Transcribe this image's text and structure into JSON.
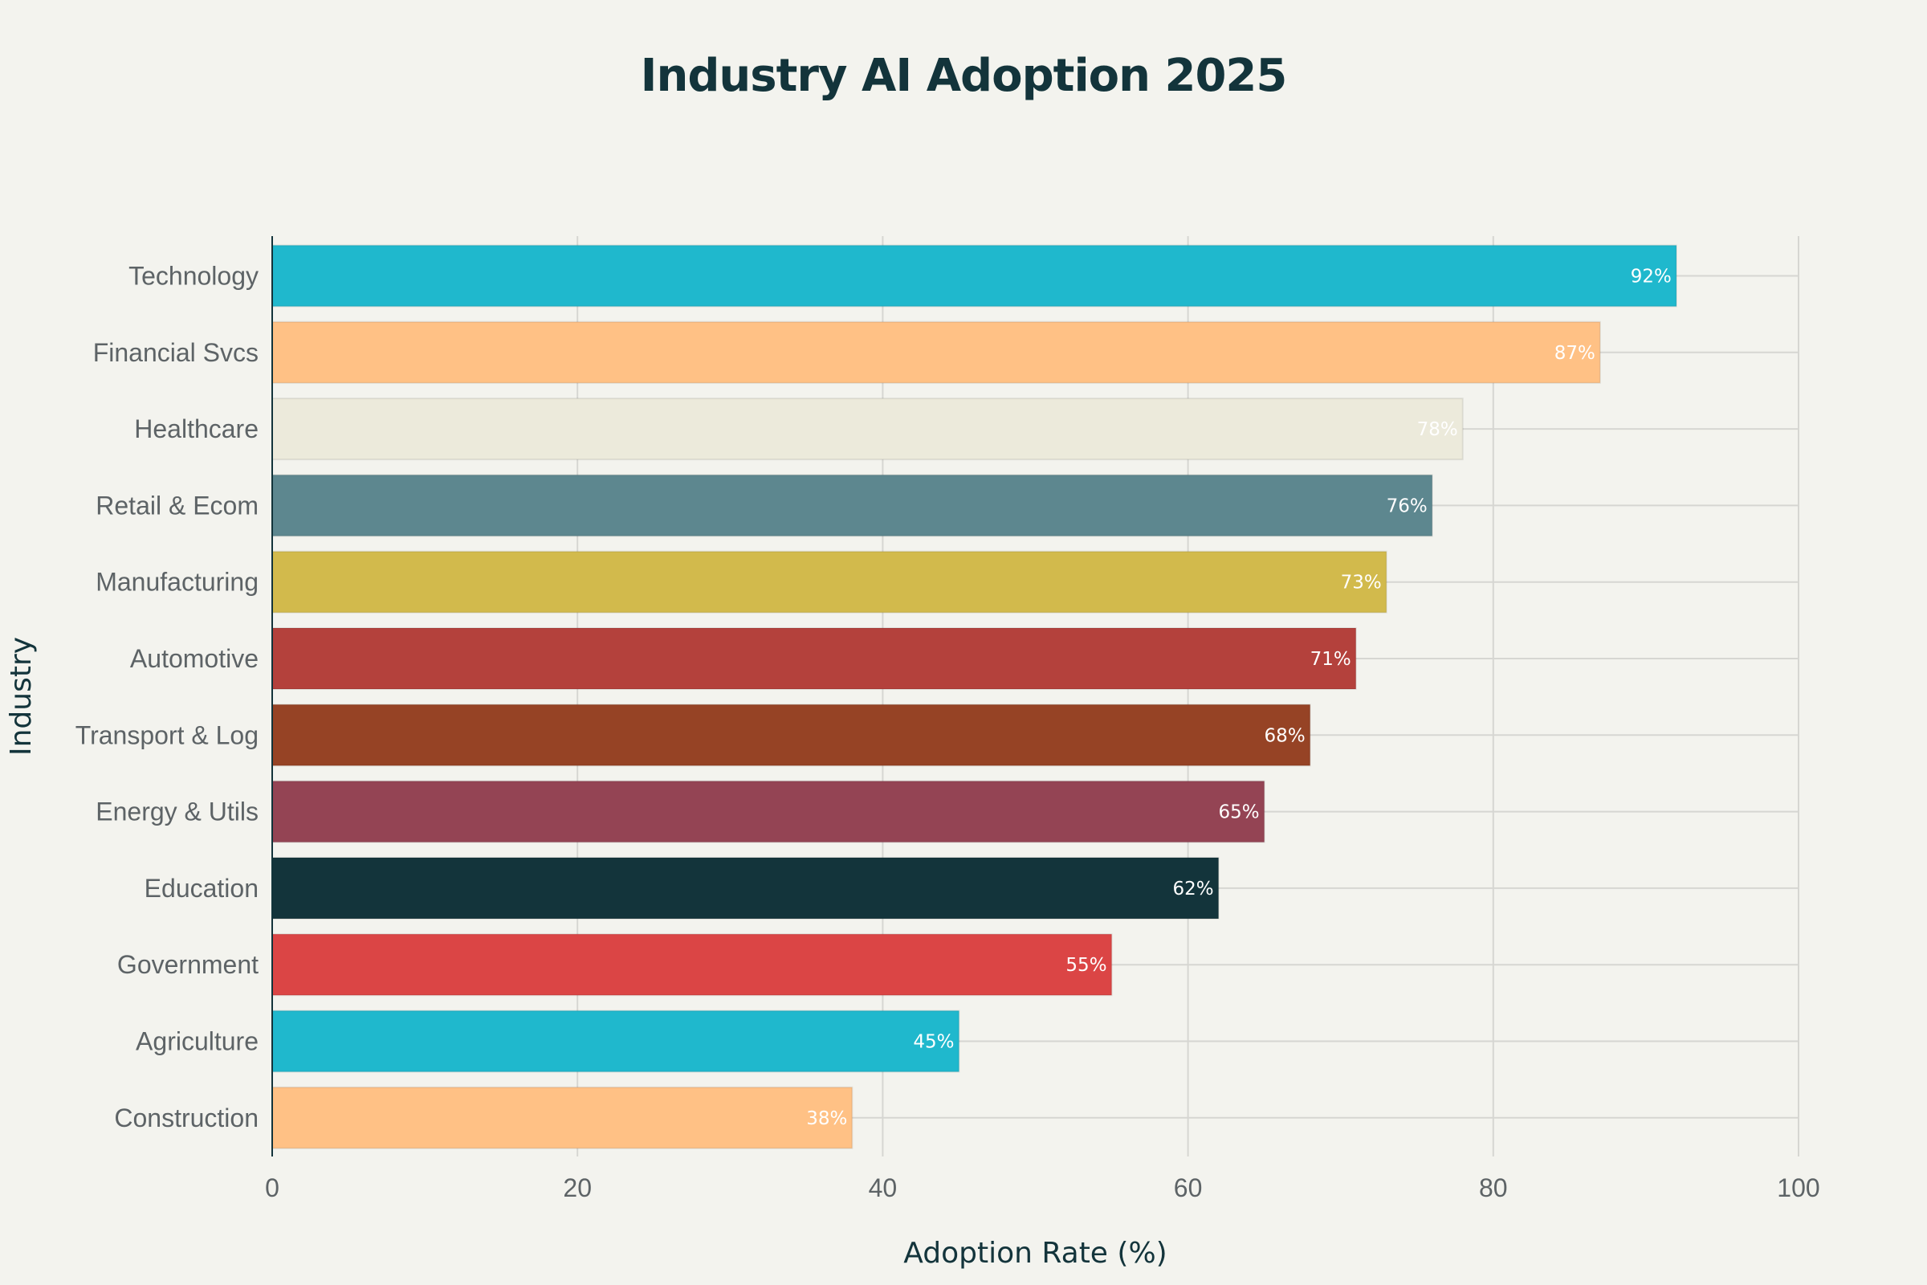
{
  "chart_data": {
    "type": "bar",
    "orientation": "horizontal",
    "title": "Industry AI Adoption 2025",
    "xlabel": "Adoption Rate (%)",
    "ylabel": "Industry",
    "xlim": [
      0,
      100
    ],
    "xticks": [
      0,
      20,
      40,
      60,
      80,
      100
    ],
    "grid": true,
    "categories": [
      "Technology",
      "Financial Svcs",
      "Healthcare",
      "Retail & Ecom",
      "Manufacturing",
      "Automotive",
      "Transport & Log",
      "Energy & Utils",
      "Education",
      "Government",
      "Agriculture",
      "Construction"
    ],
    "values": [
      92,
      87,
      78,
      76,
      73,
      71,
      68,
      65,
      62,
      55,
      45,
      38
    ],
    "data_labels": [
      "92%",
      "87%",
      "78%",
      "76%",
      "73%",
      "71%",
      "68%",
      "65%",
      "62%",
      "55%",
      "45%",
      "38%"
    ],
    "colors": [
      "#1fb8cd",
      "#ffc185",
      "#eceadb",
      "#5d878f",
      "#d2ba4c",
      "#b4413c",
      "#964325",
      "#944454",
      "#13343b",
      "#db4545",
      "#1fb8cd",
      "#ffc185"
    ],
    "background_color": "#f3f3ee",
    "grid_color": "#d6d6d2",
    "axis_color": "#13343b"
  }
}
